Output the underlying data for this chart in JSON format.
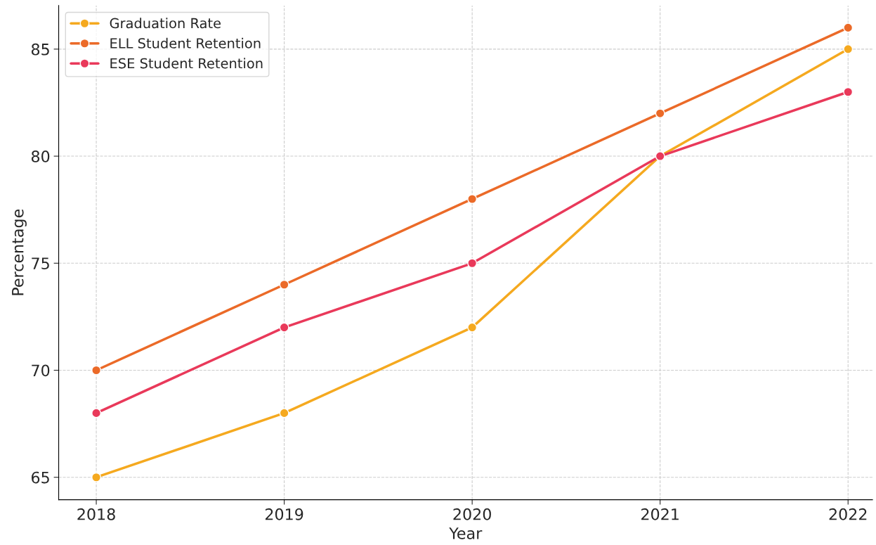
{
  "chart_data": {
    "type": "line",
    "xlabel": "Year",
    "ylabel": "Percentage",
    "x": [
      2018,
      2019,
      2020,
      2021,
      2022
    ],
    "series": [
      {
        "name": "Graduation Rate",
        "color": "#f5a91f",
        "values": [
          65,
          68,
          72,
          80,
          85
        ]
      },
      {
        "name": "ELL Student Retention",
        "color": "#eb6a28",
        "values": [
          70,
          74,
          78,
          82,
          86
        ]
      },
      {
        "name": "ESE Student Retention",
        "color": "#e9395a",
        "values": [
          68,
          72,
          75,
          80,
          83
        ]
      }
    ],
    "xlim": [
      2017.8,
      2022.13
    ],
    "ylim": [
      63.95,
      87.04
    ],
    "xticks": [
      2018,
      2019,
      2020,
      2021,
      2022
    ],
    "yticks": [
      65,
      70,
      75,
      80,
      85
    ],
    "grid": true,
    "legend": "top left",
    "marker": "circle",
    "line_style": "solid"
  }
}
